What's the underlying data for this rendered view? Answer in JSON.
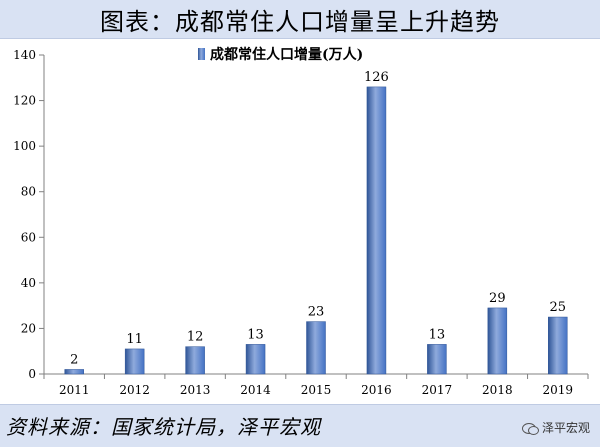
{
  "title": "图表：成都常住人口增量呈上升趋势",
  "source": "资料来源：国家统计局，泽平宏观",
  "brand": {
    "name": "泽平宏观",
    "icon": "wechat-icon"
  },
  "chart_data": {
    "type": "bar",
    "categories": [
      "2011",
      "2012",
      "2013",
      "2014",
      "2015",
      "2016",
      "2017",
      "2018",
      "2019"
    ],
    "series": [
      {
        "name": "成都常住人口增量(万人)",
        "values": [
          2,
          11,
          12,
          13,
          23,
          126,
          13,
          29,
          25
        ]
      }
    ],
    "data_labels": [
      "2",
      "11",
      "12",
      "13",
      "23",
      "126",
      "13",
      "29",
      "25"
    ],
    "ylim": [
      0,
      140
    ],
    "yticks": [
      0,
      20,
      40,
      60,
      80,
      100,
      120,
      140
    ],
    "legend_position": "top-center",
    "grid": false,
    "colors": {
      "bar": "#4472c4",
      "bar_light": "#8faadc",
      "bar_dark": "#2f5597"
    }
  }
}
